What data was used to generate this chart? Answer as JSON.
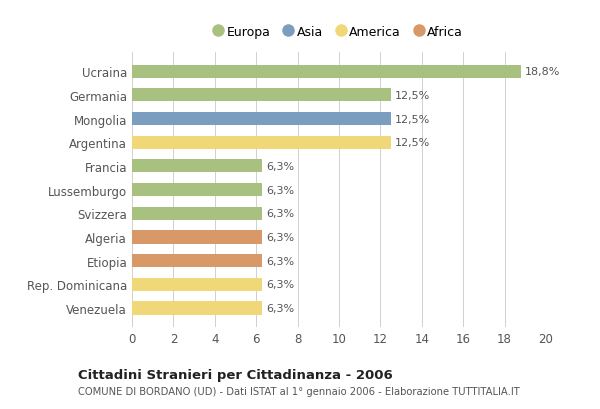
{
  "categories": [
    "Ucraina",
    "Germania",
    "Mongolia",
    "Argentina",
    "Francia",
    "Lussemburgo",
    "Svizzera",
    "Algeria",
    "Etiopia",
    "Rep. Dominicana",
    "Venezuela"
  ],
  "values": [
    18.8,
    12.5,
    12.5,
    12.5,
    6.3,
    6.3,
    6.3,
    6.3,
    6.3,
    6.3,
    6.3
  ],
  "labels": [
    "18,8%",
    "12,5%",
    "12,5%",
    "12,5%",
    "6,3%",
    "6,3%",
    "6,3%",
    "6,3%",
    "6,3%",
    "6,3%",
    "6,3%"
  ],
  "colors": [
    "#a8c080",
    "#a8c080",
    "#7b9dc0",
    "#f0d878",
    "#a8c080",
    "#a8c080",
    "#a8c080",
    "#d89868",
    "#d89868",
    "#f0d878",
    "#f0d878"
  ],
  "legend_entries": [
    {
      "label": "Europa",
      "color": "#a8c080"
    },
    {
      "label": "Asia",
      "color": "#7b9dc0"
    },
    {
      "label": "America",
      "color": "#f0d878"
    },
    {
      "label": "Africa",
      "color": "#d89868"
    }
  ],
  "xlim": [
    0,
    20
  ],
  "xticks": [
    0,
    2,
    4,
    6,
    8,
    10,
    12,
    14,
    16,
    18,
    20
  ],
  "title": "Cittadini Stranieri per Cittadinanza - 2006",
  "subtitle": "COMUNE DI BORDANO (UD) - Dati ISTAT al 1° gennaio 2006 - Elaborazione TUTTITALIA.IT",
  "background_color": "#ffffff",
  "grid_color": "#d0d0d0",
  "bar_height": 0.55
}
